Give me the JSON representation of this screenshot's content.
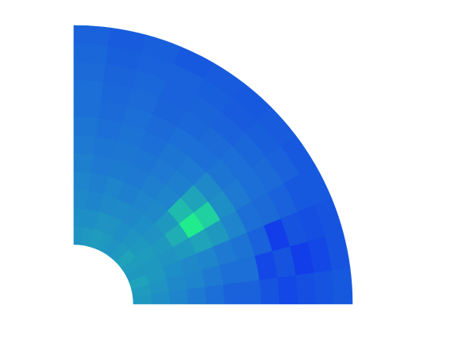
{
  "chart_data": {
    "type": "polar-heatmap",
    "thetalim": [
      0,
      90
    ],
    "clim": [
      0,
      1
    ],
    "colormap": {
      "stops": [
        0,
        0.3,
        0.5,
        0.75,
        1
      ],
      "colors": [
        "#0a1ef5",
        "#1c6fd6",
        "#1f98c0",
        "#20d0a0",
        "#20ff80"
      ]
    },
    "values": [
      [
        0.5,
        0.52,
        0.55,
        0.5,
        0.52,
        0.55,
        0.5,
        0.48,
        0.5,
        0.52,
        0.5,
        0.48
      ],
      [
        0.45,
        0.48,
        0.5,
        0.5,
        0.52,
        0.5,
        0.48,
        0.45,
        0.47,
        0.48,
        0.45,
        0.45
      ],
      [
        0.4,
        0.42,
        0.45,
        0.48,
        0.5,
        0.47,
        0.45,
        0.42,
        0.43,
        0.42,
        0.4,
        0.42
      ],
      [
        0.35,
        0.4,
        0.42,
        0.5,
        0.6,
        0.5,
        0.42,
        0.4,
        0.38,
        0.4,
        0.38,
        0.4
      ],
      [
        0.3,
        0.35,
        0.4,
        0.55,
        0.9,
        0.65,
        0.4,
        0.38,
        0.35,
        0.36,
        0.35,
        0.38
      ],
      [
        0.25,
        0.3,
        0.35,
        0.5,
        0.75,
        0.55,
        0.38,
        0.35,
        0.33,
        0.34,
        0.33,
        0.35
      ],
      [
        0.25,
        0.3,
        0.32,
        0.4,
        0.45,
        0.42,
        0.35,
        0.33,
        0.3,
        0.32,
        0.3,
        0.33
      ],
      [
        0.2,
        0.15,
        0.25,
        0.3,
        0.35,
        0.33,
        0.3,
        0.3,
        0.28,
        0.3,
        0.28,
        0.3
      ],
      [
        0.15,
        0.2,
        0.12,
        0.28,
        0.3,
        0.3,
        0.28,
        0.27,
        0.26,
        0.28,
        0.27,
        0.3
      ],
      [
        0.18,
        0.12,
        0.2,
        0.25,
        0.28,
        0.27,
        0.25,
        0.26,
        0.25,
        0.27,
        0.26,
        0.28
      ],
      [
        0.2,
        0.15,
        0.18,
        0.22,
        0.25,
        0.24,
        0.23,
        0.24,
        0.25,
        0.25,
        0.24,
        0.27
      ],
      [
        0.22,
        0.2,
        0.2,
        0.22,
        0.22,
        0.23,
        0.22,
        0.23,
        0.22,
        0.24,
        0.23,
        0.25
      ]
    ]
  }
}
